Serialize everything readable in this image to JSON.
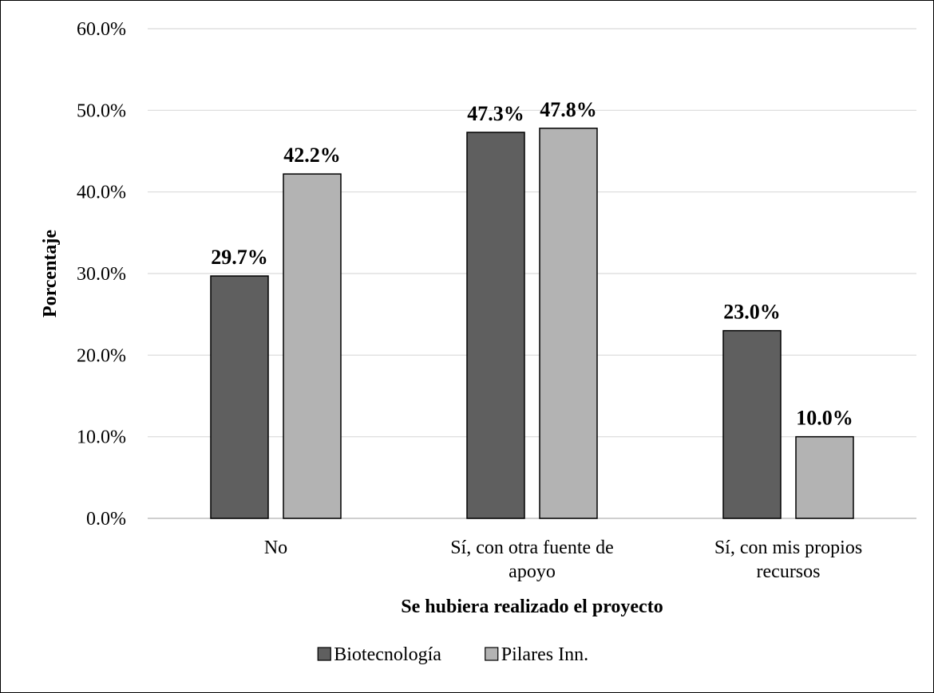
{
  "chart_data": {
    "type": "bar",
    "categories": [
      [
        "No"
      ],
      [
        "Sí, con otra fuente de",
        "apoyo"
      ],
      [
        "Sí, con mis propios",
        "recursos"
      ]
    ],
    "series": [
      {
        "name": "Biotecnología",
        "values": [
          29.7,
          47.3,
          23.0
        ],
        "color": "#5f5f5f"
      },
      {
        "name": "Pilares Inn.",
        "values": [
          42.2,
          47.8,
          10.0
        ],
        "color": "#b3b3b3"
      }
    ],
    "data_labels": [
      [
        "29.7%",
        "47.3%",
        "23.0%"
      ],
      [
        "42.2%",
        "47.8%",
        "10.0%"
      ]
    ],
    "xlabel": "Se hubiera realizado el proyecto",
    "ylabel": "Porcentaje",
    "ylim": [
      0,
      60
    ],
    "yticks": [
      "0.0%",
      "10.0%",
      "20.0%",
      "30.0%",
      "40.0%",
      "50.0%",
      "60.0%"
    ],
    "grid": true,
    "legend_position": "bottom"
  }
}
